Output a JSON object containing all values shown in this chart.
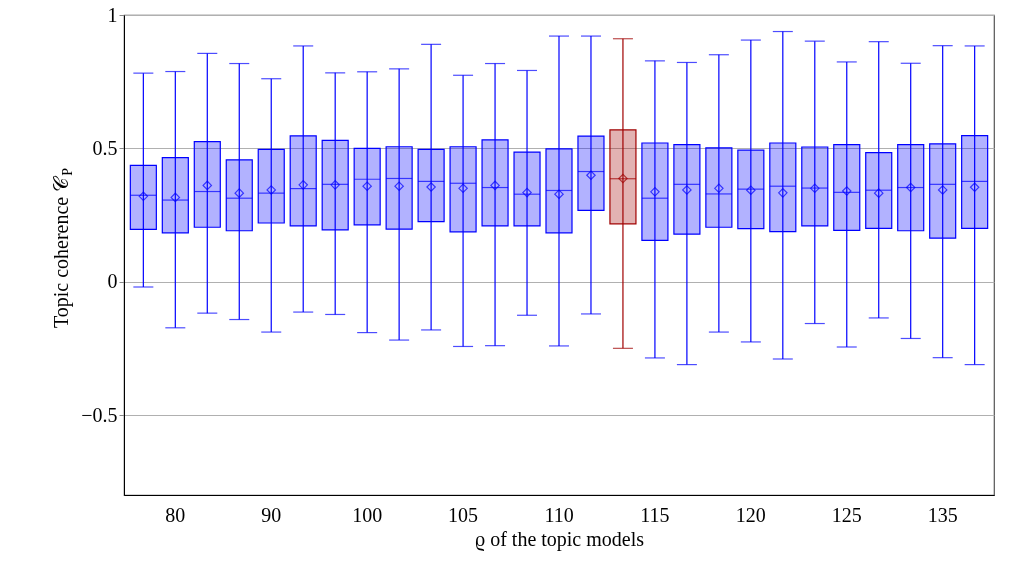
{
  "chart_data": {
    "type": "box",
    "xlabel": "ϱ of the topic models",
    "ylabel": "Topic coherence 𝒞$_{P}$",
    "categories": [
      null,
      "80",
      null,
      null,
      "90",
      null,
      null,
      "100",
      null,
      null,
      "105",
      null,
      null,
      "110",
      null,
      null,
      "115",
      null,
      null,
      "120",
      null,
      null,
      "125",
      null,
      null,
      "135",
      null
    ],
    "colors": [
      "#0000ff",
      "#0000ff",
      "#0000ff",
      "#0000ff",
      "#0000ff",
      "#0000ff",
      "#0000ff",
      "#0000ff",
      "#0000ff",
      "#0000ff",
      "#0000ff",
      "#0000ff",
      "#0000ff",
      "#0000ff",
      "#0000ff",
      "#a00000",
      "#0000ff",
      "#0000ff",
      "#0000ff",
      "#0000ff",
      "#0000ff",
      "#0000ff",
      "#0000ff",
      "#0000ff",
      "#0000ff",
      "#0000ff",
      "#0000ff"
    ],
    "boxes": [
      {
        "low": -0.02,
        "q1": 0.196,
        "median": 0.324,
        "q3": 0.436,
        "high": 0.782,
        "mean": 0.32
      },
      {
        "low": -0.173,
        "q1": 0.183,
        "median": 0.306,
        "q3": 0.465,
        "high": 0.788,
        "mean": 0.316
      },
      {
        "low": -0.118,
        "q1": 0.204,
        "median": 0.338,
        "q3": 0.525,
        "high": 0.856,
        "mean": 0.361
      },
      {
        "low": -0.142,
        "q1": 0.191,
        "median": 0.313,
        "q3": 0.457,
        "high": 0.818,
        "mean": 0.332
      },
      {
        "low": -0.189,
        "q1": 0.22,
        "median": 0.332,
        "q3": 0.496,
        "high": 0.761,
        "mean": 0.344
      },
      {
        "low": -0.114,
        "q1": 0.209,
        "median": 0.349,
        "q3": 0.547,
        "high": 0.884,
        "mean": 0.363
      },
      {
        "low": -0.123,
        "q1": 0.194,
        "median": 0.365,
        "q3": 0.53,
        "high": 0.783,
        "mean": 0.363
      },
      {
        "low": -0.191,
        "q1": 0.213,
        "median": 0.384,
        "q3": 0.5,
        "high": 0.787,
        "mean": 0.358
      },
      {
        "low": -0.219,
        "q1": 0.197,
        "median": 0.387,
        "q3": 0.506,
        "high": 0.798,
        "mean": 0.358
      },
      {
        "low": -0.181,
        "q1": 0.225,
        "median": 0.376,
        "q3": 0.496,
        "high": 0.89,
        "mean": 0.355
      },
      {
        "low": -0.243,
        "q1": 0.187,
        "median": 0.369,
        "q3": 0.506,
        "high": 0.774,
        "mean": 0.35
      },
      {
        "low": -0.24,
        "q1": 0.209,
        "median": 0.353,
        "q3": 0.532,
        "high": 0.818,
        "mean": 0.361
      },
      {
        "low": -0.126,
        "q1": 0.209,
        "median": 0.328,
        "q3": 0.486,
        "high": 0.792,
        "mean": 0.334
      },
      {
        "low": -0.241,
        "q1": 0.183,
        "median": 0.342,
        "q3": 0.498,
        "high": 0.921,
        "mean": 0.328
      },
      {
        "low": -0.121,
        "q1": 0.267,
        "median": 0.413,
        "q3": 0.546,
        "high": 0.921,
        "mean": 0.399
      },
      {
        "low": -0.25,
        "q1": 0.217,
        "median": 0.386,
        "q3": 0.569,
        "high": 0.911,
        "mean": 0.387
      },
      {
        "low": -0.286,
        "q1": 0.155,
        "median": 0.313,
        "q3": 0.52,
        "high": 0.828,
        "mean": 0.337
      },
      {
        "low": -0.311,
        "q1": 0.178,
        "median": 0.365,
        "q3": 0.514,
        "high": 0.822,
        "mean": 0.344
      },
      {
        "low": -0.189,
        "q1": 0.204,
        "median": 0.329,
        "q3": 0.502,
        "high": 0.851,
        "mean": 0.35
      },
      {
        "low": -0.226,
        "q1": 0.199,
        "median": 0.347,
        "q3": 0.493,
        "high": 0.906,
        "mean": 0.343
      },
      {
        "low": -0.29,
        "q1": 0.188,
        "median": 0.358,
        "q3": 0.52,
        "high": 0.938,
        "mean": 0.333
      },
      {
        "low": -0.157,
        "q1": 0.209,
        "median": 0.351,
        "q3": 0.505,
        "high": 0.902,
        "mean": 0.35
      },
      {
        "low": -0.245,
        "q1": 0.192,
        "median": 0.335,
        "q3": 0.514,
        "high": 0.824,
        "mean": 0.34
      },
      {
        "low": -0.136,
        "q1": 0.2,
        "median": 0.343,
        "q3": 0.484,
        "high": 0.9,
        "mean": 0.332
      },
      {
        "low": -0.213,
        "q1": 0.191,
        "median": 0.353,
        "q3": 0.514,
        "high": 0.819,
        "mean": 0.353
      },
      {
        "low": -0.285,
        "q1": 0.163,
        "median": 0.365,
        "q3": 0.517,
        "high": 0.885,
        "mean": 0.344
      },
      {
        "low": -0.311,
        "q1": 0.2,
        "median": 0.376,
        "q3": 0.548,
        "high": 0.884,
        "mean": 0.354
      }
    ],
    "ylim": [
      -0.8,
      1
    ],
    "yticks": [
      -0.5,
      0,
      0.5,
      1
    ],
    "grid": "y"
  }
}
